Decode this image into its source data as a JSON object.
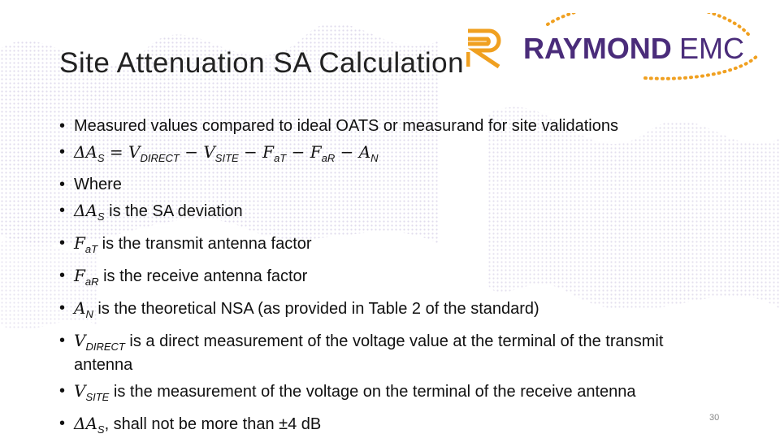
{
  "title": "Site Attenuation SA Calculation",
  "logo": {
    "brand": "RAYMOND",
    "suffix": "EMC"
  },
  "bullets": [
    [
      {
        "text": "Measured values compared to ideal OATS or measurand for site validations",
        "kind": "plain"
      }
    ],
    [
      {
        "text": "ΔA",
        "kind": "math"
      },
      {
        "text": "S",
        "kind": "sub"
      },
      {
        "text": " = V",
        "kind": "math"
      },
      {
        "text": "DIRECT",
        "kind": "sub"
      },
      {
        "text": " − V",
        "kind": "math"
      },
      {
        "text": "SITE",
        "kind": "sub"
      },
      {
        "text": " − F",
        "kind": "math"
      },
      {
        "text": "aT",
        "kind": "sub"
      },
      {
        "text": " − F",
        "kind": "math"
      },
      {
        "text": "aR",
        "kind": "sub"
      },
      {
        "text": " − A",
        "kind": "math"
      },
      {
        "text": "N",
        "kind": "sub"
      }
    ],
    [
      {
        "text": "Where",
        "kind": "plain"
      }
    ],
    [
      {
        "text": "ΔA",
        "kind": "math"
      },
      {
        "text": "S",
        "kind": "sub"
      },
      {
        "text": " is the SA deviation",
        "kind": "plain"
      }
    ],
    [
      {
        "text": "F",
        "kind": "math"
      },
      {
        "text": "aT",
        "kind": "sub"
      },
      {
        "text": " is the transmit antenna factor",
        "kind": "plain"
      }
    ],
    [
      {
        "text": "F",
        "kind": "math"
      },
      {
        "text": "aR",
        "kind": "sub"
      },
      {
        "text": " is the receive antenna factor",
        "kind": "plain"
      }
    ],
    [
      {
        "text": "A",
        "kind": "math"
      },
      {
        "text": "N",
        "kind": "sub"
      },
      {
        "text": " is the theoretical NSA (as provided in Table 2 of the standard)",
        "kind": "plain"
      }
    ],
    [
      {
        "text": "V",
        "kind": "math"
      },
      {
        "text": "DIRECT",
        "kind": "sub"
      },
      {
        "text": " is a direct measurement of the voltage value at the terminal of the transmit antenna",
        "kind": "plain"
      }
    ],
    [
      {
        "text": "V",
        "kind": "math"
      },
      {
        "text": "SITE",
        "kind": "sub"
      },
      {
        "text": " is the measurement of the voltage on the terminal of the receive antenna",
        "kind": "plain"
      }
    ],
    [
      {
        "text": "ΔA",
        "kind": "math"
      },
      {
        "text": "S",
        "kind": "sub"
      },
      {
        "text": ", shall not be more than ±4 dB",
        "kind": "plain"
      }
    ]
  ],
  "page_number": "30"
}
